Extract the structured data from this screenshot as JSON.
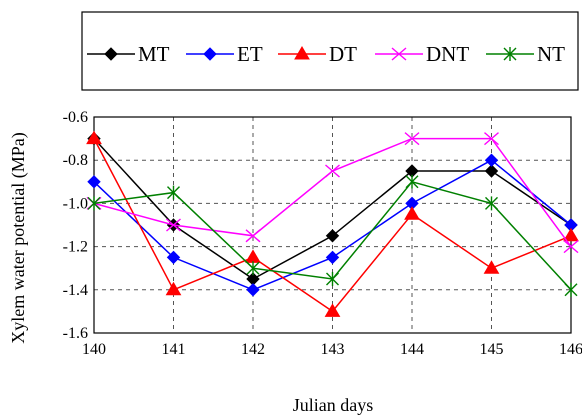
{
  "chart_data": {
    "type": "line",
    "xlabel": "Julian days",
    "ylabel": "Xylem water potential (MPa)",
    "x": [
      140,
      141,
      142,
      143,
      144,
      145,
      146
    ],
    "x_tick_labels": [
      "140",
      "141",
      "142",
      "143",
      "144",
      "145",
      "146"
    ],
    "xlim": [
      140,
      146
    ],
    "ylim": [
      -1.6,
      -0.6
    ],
    "y_ticks": [
      -1.6,
      -1.4,
      -1.2,
      -1.0,
      -0.8,
      -0.6
    ],
    "y_tick_labels": [
      "-1.6",
      "-1.4",
      "-1.2",
      "-1.0",
      "-0.8",
      "-0.6"
    ],
    "grid": true,
    "legend_position": "top",
    "series": [
      {
        "name": "MT",
        "color": "#000000",
        "marker": "diamond",
        "values": [
          -0.7,
          -1.1,
          -1.35,
          -1.15,
          -0.85,
          -0.85,
          -1.1
        ]
      },
      {
        "name": "ET",
        "color": "#0000ff",
        "marker": "diamond",
        "values": [
          -0.9,
          -1.25,
          -1.4,
          -1.25,
          -1.0,
          -0.8,
          -1.1
        ]
      },
      {
        "name": "DT",
        "color": "#ff0000",
        "marker": "triangle",
        "values": [
          -0.7,
          -1.4,
          -1.25,
          -1.5,
          -1.05,
          -1.3,
          -1.15
        ]
      },
      {
        "name": "DNT",
        "color": "#ff00ff",
        "marker": "x",
        "values": [
          -1.0,
          -1.1,
          -1.15,
          -0.85,
          -0.7,
          -0.7,
          -1.2
        ]
      },
      {
        "name": "NT",
        "color": "#008000",
        "marker": "asterisk",
        "values": [
          -1.0,
          -0.95,
          -1.3,
          -1.35,
          -0.9,
          -1.0,
          -1.4
        ]
      }
    ]
  }
}
